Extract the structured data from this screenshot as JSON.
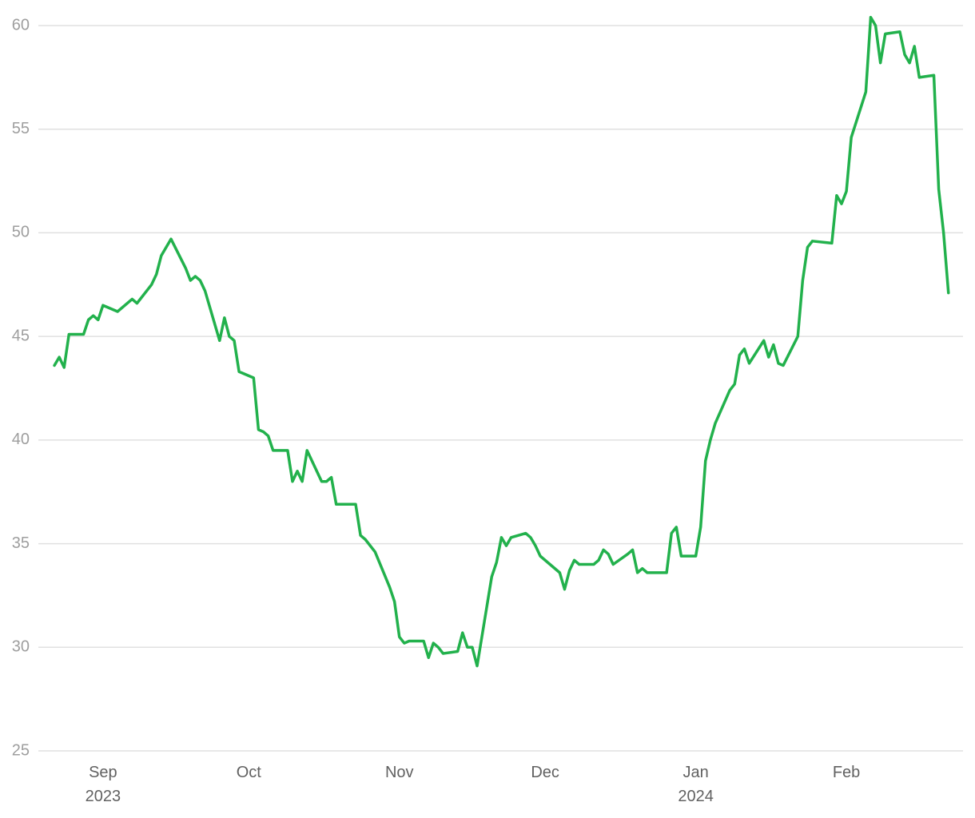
{
  "chart_data": {
    "type": "line",
    "color": "#22b14c",
    "grid": true,
    "xlim": [
      -13.3,
      177
    ],
    "ylim": [
      25,
      60
    ],
    "yticks": [
      25,
      30,
      35,
      40,
      45,
      50,
      55,
      60
    ],
    "xticks": [
      {
        "value": 0,
        "label": "Sep",
        "year": "2023"
      },
      {
        "value": 30,
        "label": "Oct"
      },
      {
        "value": 61,
        "label": "Nov"
      },
      {
        "value": 91,
        "label": "Dec"
      },
      {
        "value": 122,
        "label": "Jan",
        "year": "2024"
      },
      {
        "value": 153,
        "label": "Feb"
      }
    ],
    "x": [
      -10,
      -9,
      -8,
      -7,
      -4,
      -3,
      -2,
      -1,
      0,
      3,
      6,
      7,
      10,
      11,
      12,
      14,
      17,
      18,
      19,
      20,
      21,
      24,
      25,
      26,
      27,
      28,
      31,
      32,
      33,
      34,
      35,
      38,
      39,
      40,
      41,
      42,
      45,
      46,
      47,
      48,
      49,
      52,
      53,
      54,
      56,
      59,
      60,
      61,
      62,
      63,
      66,
      67,
      68,
      69,
      70,
      73,
      74,
      75,
      76,
      77,
      80,
      81,
      82,
      83,
      84,
      87,
      88,
      89,
      90,
      94,
      95,
      96,
      97,
      98,
      101,
      102,
      103,
      104,
      105,
      108,
      109,
      110,
      111,
      112,
      116,
      117,
      118,
      119,
      122,
      123,
      124,
      125,
      126,
      129,
      130,
      131,
      132,
      133,
      136,
      137,
      138,
      139,
      140,
      143,
      144,
      145,
      146,
      150,
      151,
      152,
      153,
      154,
      157,
      158,
      159,
      160,
      161,
      164,
      165,
      166,
      167,
      168,
      171,
      172,
      173,
      174
    ],
    "values": [
      43.6,
      44.0,
      43.5,
      45.1,
      45.1,
      45.8,
      46.0,
      45.8,
      46.5,
      46.2,
      46.8,
      46.6,
      47.5,
      48.0,
      48.9,
      49.7,
      48.3,
      47.7,
      47.9,
      47.7,
      47.2,
      44.8,
      45.9,
      45.0,
      44.8,
      43.3,
      43.0,
      40.5,
      40.4,
      40.2,
      39.5,
      39.5,
      38.0,
      38.5,
      38.0,
      39.5,
      38.0,
      38.0,
      38.2,
      36.9,
      36.9,
      36.9,
      35.4,
      35.2,
      34.6,
      32.9,
      32.2,
      30.5,
      30.2,
      30.3,
      30.3,
      29.5,
      30.2,
      30.0,
      29.7,
      29.8,
      30.7,
      30.0,
      30.0,
      29.1,
      33.4,
      34.1,
      35.3,
      34.9,
      35.3,
      35.5,
      35.3,
      34.9,
      34.4,
      33.6,
      32.8,
      33.7,
      34.2,
      34.0,
      34.0,
      34.2,
      34.7,
      34.5,
      34.0,
      34.5,
      34.7,
      33.6,
      33.8,
      33.6,
      33.6,
      35.5,
      35.8,
      34.4,
      34.4,
      35.8,
      39.0,
      40.0,
      40.8,
      42.4,
      42.7,
      44.1,
      44.4,
      43.7,
      44.8,
      44.0,
      44.6,
      43.7,
      43.6,
      45.0,
      47.7,
      49.3,
      49.6,
      49.5,
      51.8,
      51.4,
      52.0,
      54.6,
      56.8,
      60.4,
      60.0,
      58.2,
      59.6,
      59.7,
      58.6,
      58.2,
      59.0,
      57.5,
      57.6,
      52.1,
      50.0,
      47.1
    ]
  }
}
